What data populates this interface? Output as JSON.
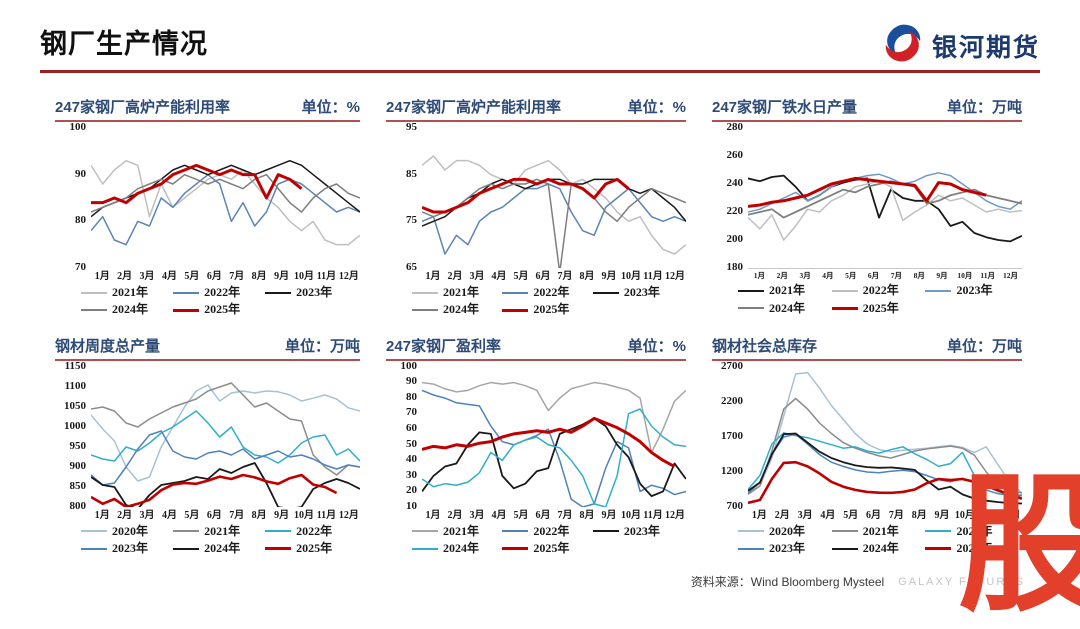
{
  "header": {
    "title": "钢厂生产情况",
    "logo_text": "银河期货"
  },
  "footer": {
    "source": "资料来源：Wind Bloomberg Mysteel",
    "brand": "GALAXY FUTURES",
    "watermark": "股"
  },
  "months": [
    "1月",
    "2月",
    "3月",
    "4月",
    "5月",
    "6月",
    "7月",
    "8月",
    "9月",
    "10月",
    "11月",
    "12月"
  ],
  "colors": {
    "accent_red": "#C00000",
    "title_navy": "#2E4A76",
    "rule_red": "#9E1F1F",
    "underline_red": "#B05050",
    "watermark_red": "#E2402B"
  },
  "chart_data": [
    {
      "type": "line",
      "title": "247家钢厂高炉产能利用率",
      "unit": "单位：%",
      "ylim": [
        70,
        100
      ],
      "yticks": [
        70,
        80,
        90,
        100
      ],
      "x_style": "wrap",
      "legend_position": "bottom",
      "grid": false,
      "series": [
        {
          "name": "2021年",
          "color": "#BFBFBF",
          "width": 1.5,
          "values": [
            92,
            88,
            91,
            93,
            92,
            81,
            88,
            83,
            85,
            87,
            89,
            90,
            89,
            91,
            88,
            85,
            83,
            80,
            78,
            80,
            76,
            75,
            75,
            77
          ]
        },
        {
          "name": "2022年",
          "color": "#5B84B5",
          "width": 1.5,
          "values": [
            78,
            81,
            76,
            75,
            80,
            79,
            85,
            83,
            86,
            88,
            90,
            88,
            80,
            84,
            79,
            82,
            88,
            89,
            88,
            86,
            84,
            82,
            83,
            82
          ]
        },
        {
          "name": "2023年",
          "color": "#1A1A1A",
          "width": 1.5,
          "values": [
            81,
            83,
            84,
            85,
            86,
            87,
            89,
            91,
            92,
            91,
            90,
            91,
            92,
            91,
            90,
            91,
            92,
            93,
            92,
            90,
            88,
            86,
            84,
            82
          ]
        },
        {
          "name": "2024年",
          "color": "#7F7F7F",
          "width": 1.5,
          "values": [
            82,
            83,
            84,
            85,
            87,
            88,
            89,
            88,
            90,
            89,
            88,
            89,
            88,
            87,
            89,
            90,
            87,
            84,
            82,
            85,
            87,
            88,
            86,
            85
          ]
        },
        {
          "name": "2025年",
          "color": "#C00000",
          "width": 3,
          "values": [
            84,
            84,
            85,
            84,
            86,
            87,
            88,
            90,
            91,
            92,
            91,
            90,
            91,
            90,
            90,
            85,
            90,
            89,
            87
          ]
        }
      ]
    },
    {
      "type": "line",
      "title": "247家钢厂高炉产能利用率",
      "unit": "单位：%",
      "ylim": [
        65,
        95
      ],
      "yticks": [
        65,
        75,
        85,
        95
      ],
      "x_style": "wrap",
      "legend_position": "bottom",
      "grid": false,
      "series": [
        {
          "name": "2021年",
          "color": "#BFBFBF",
          "width": 1.5,
          "values": [
            87,
            89,
            86,
            88,
            88,
            87,
            85,
            84,
            83,
            86,
            87,
            88,
            86,
            83,
            84,
            82,
            80,
            77,
            75,
            76,
            72,
            69,
            68,
            70
          ]
        },
        {
          "name": "2022年",
          "color": "#5B84B5",
          "width": 1.5,
          "values": [
            75,
            76,
            68,
            72,
            70,
            75,
            77,
            78,
            80,
            82,
            82,
            83,
            82,
            77,
            73,
            72,
            78,
            80,
            82,
            79,
            76,
            75,
            76,
            75
          ]
        },
        {
          "name": "2023年",
          "color": "#1A1A1A",
          "width": 1.5,
          "values": [
            74,
            75,
            76,
            78,
            80,
            81,
            83,
            84,
            83,
            82,
            83,
            84,
            84,
            83,
            83,
            84,
            84,
            84,
            82,
            81,
            82,
            80,
            78,
            75
          ]
        },
        {
          "name": "2024年",
          "color": "#7F7F7F",
          "width": 1.5,
          "values": [
            77,
            76,
            77,
            78,
            80,
            82,
            83,
            82,
            83,
            83,
            84,
            83,
            64,
            83,
            82,
            80,
            77,
            75,
            78,
            80,
            82,
            81,
            80,
            79
          ]
        },
        {
          "name": "2025年",
          "color": "#C00000",
          "width": 3,
          "values": [
            78,
            77,
            77,
            78,
            79,
            81,
            82,
            83,
            84,
            84,
            83,
            84,
            83,
            83,
            82,
            80,
            83,
            84,
            82
          ]
        }
      ]
    },
    {
      "type": "line",
      "title": "247家钢厂铁水日产量",
      "unit": "单位：万吨",
      "ylim": [
        180,
        280
      ],
      "yticks": [
        180,
        200,
        220,
        240,
        260,
        280
      ],
      "x_style": "small",
      "legend_position": "bottom",
      "grid": false,
      "axis_line": true,
      "series": [
        {
          "name": "2021年",
          "color": "#1A1A1A",
          "width": 1.8,
          "values": [
            244,
            242,
            245,
            246,
            238,
            228,
            232,
            238,
            241,
            243,
            244,
            216,
            236,
            230,
            228,
            228,
            222,
            210,
            213,
            205,
            202,
            200,
            199,
            203
          ]
        },
        {
          "name": "2022年",
          "color": "#BFBFBF",
          "width": 1.5,
          "values": [
            216,
            208,
            218,
            200,
            210,
            222,
            220,
            228,
            232,
            238,
            240,
            242,
            238,
            214,
            220,
            225,
            232,
            228,
            230,
            225,
            220,
            222,
            220,
            221
          ]
        },
        {
          "name": "2023年",
          "color": "#6E9BC5",
          "width": 1.5,
          "values": [
            220,
            222,
            226,
            230,
            234,
            228,
            232,
            238,
            242,
            244,
            246,
            247,
            244,
            240,
            242,
            246,
            248,
            246,
            240,
            234,
            228,
            224,
            222,
            228
          ]
        },
        {
          "name": "2024年",
          "color": "#7F7F7F",
          "width": 1.8,
          "values": [
            218,
            220,
            222,
            216,
            220,
            224,
            228,
            232,
            236,
            234,
            238,
            240,
            242,
            240,
            238,
            226,
            228,
            232,
            234,
            236,
            232,
            230,
            228,
            226
          ]
        },
        {
          "name": "2025年",
          "color": "#C00000",
          "width": 3,
          "values": [
            224,
            225,
            227,
            228,
            230,
            232,
            236,
            240,
            242,
            244,
            243,
            242,
            241,
            240,
            239,
            228,
            241,
            240,
            236,
            234,
            232
          ]
        }
      ]
    },
    {
      "type": "line",
      "title": "钢材周度总产量",
      "unit": "单位：万吨",
      "ylim": [
        800,
        1150
      ],
      "yticks": [
        800,
        850,
        900,
        950,
        1000,
        1050,
        1100,
        1150
      ],
      "x_style": "wrap",
      "legend_position": "bottom",
      "grid": false,
      "series": [
        {
          "name": "2020年",
          "color": "#A5C2D6",
          "width": 1.5,
          "values": [
            1030,
            995,
            965,
            900,
            865,
            875,
            950,
            1000,
            1050,
            1090,
            1105,
            1065,
            1085,
            1090,
            1085,
            1090,
            1088,
            1080,
            1065,
            1072,
            1080,
            1070,
            1048,
            1040
          ]
        },
        {
          "name": "2021年",
          "color": "#8C8C8C",
          "width": 1.5,
          "values": [
            1045,
            1050,
            1040,
            1010,
            1000,
            1020,
            1035,
            1050,
            1060,
            1070,
            1090,
            1100,
            1110,
            1080,
            1050,
            1060,
            1040,
            1020,
            1015,
            930,
            900,
            880,
            905,
            900
          ]
        },
        {
          "name": "2022年",
          "color": "#2FAECB",
          "width": 1.5,
          "values": [
            930,
            920,
            915,
            950,
            940,
            960,
            985,
            1000,
            1020,
            1040,
            1010,
            975,
            1000,
            950,
            930,
            925,
            910,
            930,
            960,
            975,
            980,
            930,
            945,
            915
          ]
        },
        {
          "name": "2023年",
          "color": "#4F81BD",
          "width": 1.5,
          "values": [
            880,
            855,
            860,
            900,
            945,
            980,
            990,
            940,
            925,
            920,
            935,
            940,
            930,
            945,
            920,
            930,
            940,
            925,
            930,
            920,
            905,
            895,
            905,
            900
          ]
        },
        {
          "name": "2024年",
          "color": "#1A1A1A",
          "width": 1.8,
          "values": [
            875,
            855,
            850,
            805,
            795,
            830,
            855,
            860,
            865,
            875,
            870,
            895,
            885,
            900,
            910,
            860,
            800,
            795,
            800,
            845,
            860,
            870,
            860,
            845
          ]
        },
        {
          "name": "2025年",
          "color": "#C00000",
          "width": 2.6,
          "values": [
            825,
            808,
            820,
            800,
            808,
            818,
            842,
            856,
            860,
            858,
            866,
            876,
            870,
            880,
            874,
            864,
            858,
            872,
            880,
            856,
            850,
            835
          ]
        }
      ]
    },
    {
      "type": "line",
      "title": "247家钢厂盈利率",
      "unit": "单位：%",
      "ylim": [
        10,
        100
      ],
      "yticks": [
        10,
        20,
        30,
        40,
        50,
        60,
        70,
        80,
        90,
        100
      ],
      "x_style": "wrap",
      "legend_position": "bottom",
      "grid": false,
      "series": [
        {
          "name": "2021年",
          "color": "#A6A6A6",
          "width": 1.5,
          "values": [
            90,
            89,
            86,
            84,
            85,
            88,
            90,
            89,
            90,
            88,
            85,
            72,
            80,
            86,
            88,
            90,
            89,
            87,
            85,
            80,
            45,
            60,
            78,
            85
          ]
        },
        {
          "name": "2022年",
          "color": "#4F81BD",
          "width": 1.5,
          "values": [
            85,
            82,
            80,
            77,
            76,
            75,
            62,
            52,
            50,
            53,
            56,
            60,
            40,
            15,
            10,
            12,
            35,
            52,
            48,
            20,
            24,
            22,
            18,
            20
          ]
        },
        {
          "name": "2023年",
          "color": "#1A1A1A",
          "width": 1.8,
          "values": [
            20,
            30,
            36,
            38,
            50,
            58,
            57,
            30,
            22,
            25,
            33,
            35,
            57,
            60,
            63,
            67,
            62,
            50,
            42,
            25,
            17,
            20,
            38,
            28
          ]
        },
        {
          "name": "2024年",
          "color": "#2FAECB",
          "width": 1.5,
          "values": [
            28,
            23,
            25,
            24,
            26,
            32,
            45,
            40,
            50,
            53,
            55,
            50,
            48,
            40,
            30,
            12,
            10,
            30,
            70,
            73,
            62,
            55,
            50,
            49
          ]
        },
        {
          "name": "2025年",
          "color": "#C00000",
          "width": 3,
          "values": [
            47,
            49,
            48,
            50,
            49,
            51,
            52,
            55,
            57,
            58,
            59,
            58,
            60,
            58,
            62,
            67,
            64,
            61,
            57,
            52,
            45,
            40,
            36
          ]
        }
      ]
    },
    {
      "type": "line",
      "title": "钢材社会总库存",
      "unit": "单位：万吨",
      "ylim": [
        700,
        2700
      ],
      "yticks": [
        700,
        1200,
        1700,
        2200,
        2700
      ],
      "x_style": "wrap",
      "legend_position": "bottom",
      "grid": false,
      "series": [
        {
          "name": "2020年",
          "color": "#A5C2D6",
          "width": 1.5,
          "values": [
            900,
            1000,
            1400,
            2000,
            2600,
            2620,
            2400,
            2150,
            1950,
            1750,
            1600,
            1520,
            1490,
            1510,
            1525,
            1540,
            1560,
            1580,
            1550,
            1480,
            1560,
            1300,
            1050,
            900
          ]
        },
        {
          "name": "2021年",
          "color": "#8C8C8C",
          "width": 1.5,
          "values": [
            880,
            1000,
            1500,
            2100,
            2250,
            2100,
            1900,
            1750,
            1620,
            1540,
            1480,
            1430,
            1400,
            1450,
            1500,
            1530,
            1550,
            1570,
            1540,
            1440,
            1200,
            1000,
            930,
            900
          ]
        },
        {
          "name": "2022年",
          "color": "#2FAECB",
          "width": 1.5,
          "values": [
            950,
            1150,
            1600,
            1760,
            1720,
            1690,
            1640,
            1590,
            1540,
            1560,
            1500,
            1470,
            1520,
            1560,
            1460,
            1380,
            1280,
            1320,
            1480,
            1150,
            1000,
            920,
            880,
            870
          ]
        },
        {
          "name": "2023年",
          "color": "#4F81BD",
          "width": 1.5,
          "values": [
            900,
            1050,
            1450,
            1700,
            1740,
            1600,
            1450,
            1340,
            1280,
            1230,
            1200,
            1190,
            1210,
            1225,
            1205,
            1150,
            1090,
            1060,
            1110,
            1050,
            940,
            890,
            870,
            860
          ]
        },
        {
          "name": "2024年",
          "color": "#1A1A1A",
          "width": 1.8,
          "values": [
            930,
            1050,
            1450,
            1740,
            1750,
            1620,
            1490,
            1400,
            1340,
            1295,
            1270,
            1260,
            1265,
            1250,
            1230,
            1080,
            950,
            990,
            880,
            820,
            790,
            770,
            755,
            750
          ]
        },
        {
          "name": "2025年",
          "color": "#C00000",
          "width": 2.6,
          "values": [
            760,
            800,
            1100,
            1330,
            1340,
            1280,
            1180,
            1060,
            990,
            945,
            915,
            905,
            902,
            915,
            950,
            1040,
            1100,
            1085,
            1100,
            1060,
            1000,
            940,
            870,
            820
          ]
        }
      ]
    }
  ]
}
